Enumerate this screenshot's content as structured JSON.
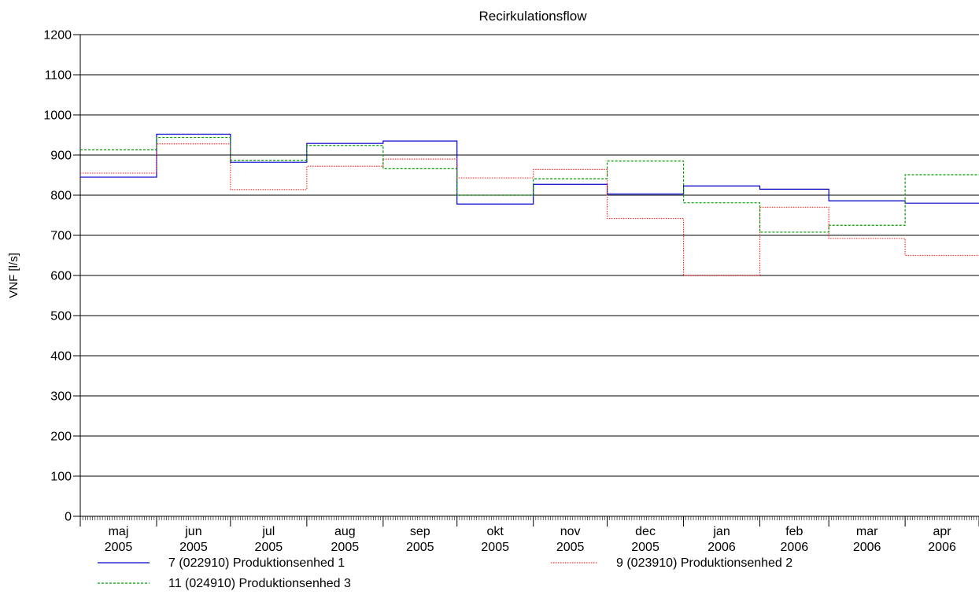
{
  "chart_data": {
    "type": "line",
    "step": true,
    "title": "Recirkulationsflow",
    "ylabel": "VNF [l/s]",
    "xlabel": "",
    "ylim": [
      0,
      1200
    ],
    "yticks": [
      0,
      100,
      200,
      300,
      400,
      500,
      600,
      700,
      800,
      900,
      1000,
      1100,
      1200
    ],
    "grid": "horizontal",
    "legend_position": "bottom",
    "categories": [
      [
        "maj",
        "2005"
      ],
      [
        "jun",
        "2005"
      ],
      [
        "jul",
        "2005"
      ],
      [
        "aug",
        "2005"
      ],
      [
        "sep",
        "2005"
      ],
      [
        "okt",
        "2005"
      ],
      [
        "nov",
        "2005"
      ],
      [
        "dec",
        "2005"
      ],
      [
        "jan",
        "2006"
      ],
      [
        "feb",
        "2006"
      ],
      [
        "mar",
        "2006"
      ],
      [
        "apr",
        "2006"
      ]
    ],
    "days_in_month": [
      31,
      30,
      31,
      31,
      30,
      31,
      30,
      31,
      31,
      28,
      31,
      30
    ],
    "series": [
      {
        "name": "7 (022910) Produktionsenhed 1",
        "color": "#0000cc",
        "dash": "solid",
        "values": [
          845,
          952,
          882,
          929,
          935,
          778,
          827,
          803,
          823,
          815,
          786,
          780
        ]
      },
      {
        "name": "9 (023910) Produktionsenhed 2",
        "color": "#ff3333",
        "dash": "dotted",
        "values": [
          855,
          928,
          814,
          872,
          890,
          843,
          864,
          742,
          600,
          770,
          692,
          650
        ]
      },
      {
        "name": "11 (024910) Produktionsenhed 3",
        "color": "#009900",
        "dash": "dashed",
        "values": [
          913,
          944,
          887,
          924,
          866,
          800,
          841,
          885,
          781,
          708,
          725,
          851
        ]
      }
    ]
  }
}
